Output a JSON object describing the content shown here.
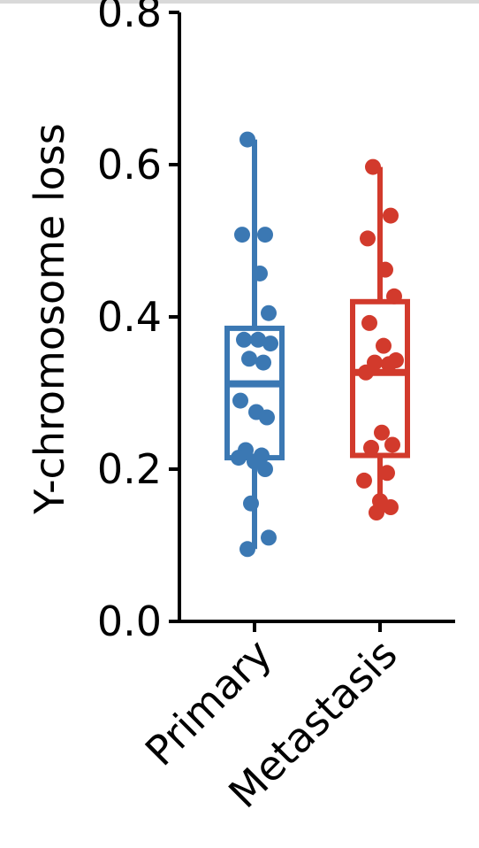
{
  "chart_data": {
    "type": "box",
    "title": "",
    "xlabel": "",
    "ylabel": "Y-chromosome loss",
    "ylim": [
      0.0,
      0.8
    ],
    "yticks": [
      "0.0",
      "0.2",
      "0.4",
      "0.6",
      "0.8"
    ],
    "grid": false,
    "categories": [
      "Primary",
      "Metastasis"
    ],
    "series": [
      {
        "category": "Primary",
        "color": "#3b78b3",
        "whisker_low": 0.095,
        "q1": 0.215,
        "median": 0.312,
        "q3": 0.385,
        "whisker_high": 0.633,
        "points": [
          0.633,
          0.508,
          0.508,
          0.457,
          0.405,
          0.37,
          0.37,
          0.365,
          0.345,
          0.34,
          0.29,
          0.275,
          0.268,
          0.225,
          0.218,
          0.215,
          0.21,
          0.2,
          0.155,
          0.11,
          0.095
        ]
      },
      {
        "category": "Metastasis",
        "color": "#d23a2c",
        "whisker_low": 0.143,
        "q1": 0.218,
        "median": 0.327,
        "q3": 0.42,
        "whisker_high": 0.597,
        "points": [
          0.597,
          0.533,
          0.503,
          0.462,
          0.427,
          0.392,
          0.362,
          0.343,
          0.34,
          0.338,
          0.327,
          0.248,
          0.232,
          0.228,
          0.195,
          0.185,
          0.158,
          0.15,
          0.143
        ]
      }
    ]
  }
}
